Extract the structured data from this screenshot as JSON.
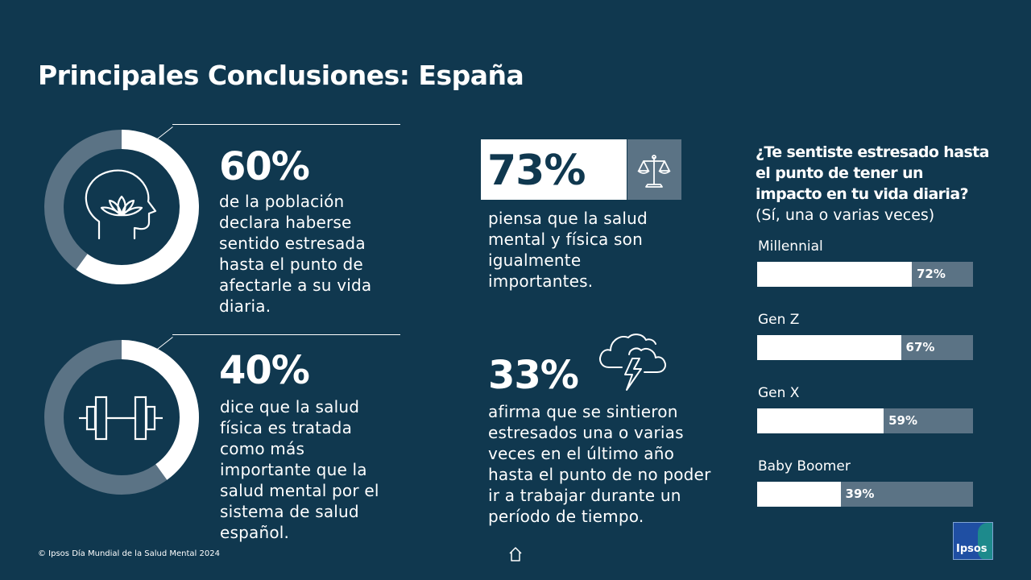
{
  "page": {
    "title": "Principales Conclusiones: España",
    "footer": "© Ipsos Día Mundial de la Salud Mental 2024",
    "logo_text": "Ipsos"
  },
  "colors": {
    "background": "#10384f",
    "accent_gray": "#5b7385",
    "white": "#ffffff"
  },
  "stat1": {
    "value": "60%",
    "text": "de la población declara haberse sentido estresada hasta el punto de afectarle a su vida diaria.",
    "fraction": 0.6,
    "icon": "head-lotus-icon"
  },
  "stat2": {
    "value": "40%",
    "text": "dice que la salud física es tratada como más importante que la salud mental por el sistema de salud español.",
    "fraction": 0.4,
    "icon": "dumbbell-icon"
  },
  "stat3": {
    "value": "73%",
    "text": "piensa que la salud mental y física son igualmente importantes.",
    "icon": "scale-icon"
  },
  "stat4": {
    "value": "33%",
    "text": "afirma que se sintieron estresados una o varias veces en el último año hasta el punto de no poder ir a trabajar durante un período de tiempo.",
    "icon": "storm-cloud-icon"
  },
  "question": {
    "bold": "¿Te sentiste estresado hasta el punto de tener un impacto en tu vida diaria?",
    "rest": "(Sí, una o varias veces)"
  },
  "nav": {
    "home_icon": "home-icon"
  },
  "chart_data": {
    "type": "bar",
    "orientation": "horizontal",
    "title": "¿Te sentiste estresado hasta el punto de tener un impacto en tu vida diaria? (Sí, una o varias veces)",
    "categories": [
      "Millennial",
      "Gen Z",
      "Gen X",
      "Baby Boomer"
    ],
    "values": [
      72,
      67,
      59,
      39
    ],
    "value_labels": [
      "72%",
      "67%",
      "59%",
      "39%"
    ],
    "xlim": [
      0,
      100
    ],
    "grid": false
  }
}
